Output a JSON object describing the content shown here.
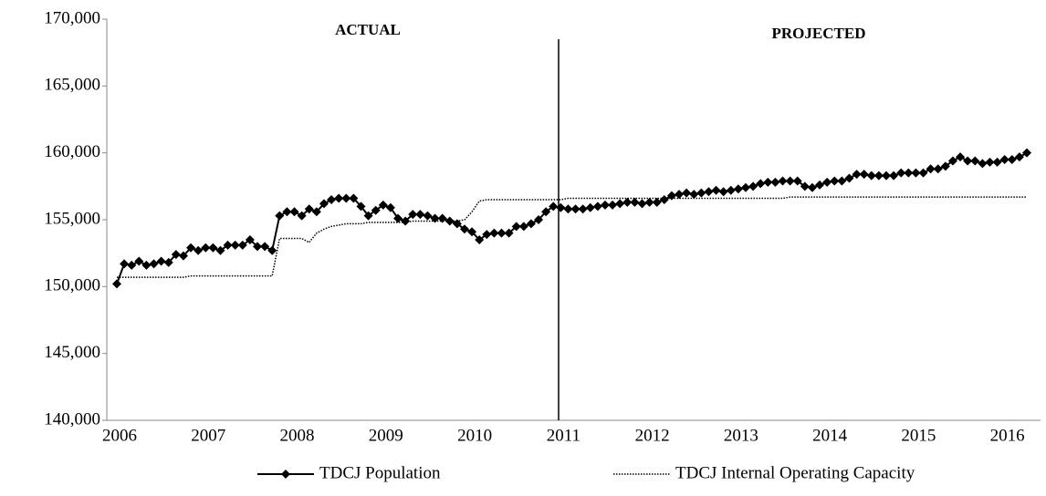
{
  "chart_data": {
    "type": "line",
    "annotations": [
      "ACTUAL",
      "PROJECTED"
    ],
    "categories": [
      "2006",
      null,
      null,
      null,
      null,
      null,
      null,
      null,
      null,
      null,
      null,
      null,
      "2007",
      null,
      null,
      null,
      null,
      null,
      null,
      null,
      null,
      null,
      null,
      null,
      "2008",
      null,
      null,
      null,
      null,
      null,
      null,
      null,
      null,
      null,
      null,
      null,
      "2009",
      null,
      null,
      null,
      null,
      null,
      null,
      null,
      null,
      null,
      null,
      null,
      "2010",
      null,
      null,
      null,
      null,
      null,
      null,
      null,
      null,
      null,
      null,
      null,
      "2011",
      null,
      null,
      null,
      null,
      null,
      null,
      null,
      null,
      null,
      null,
      null,
      "2012",
      null,
      null,
      null,
      null,
      null,
      null,
      null,
      null,
      null,
      null,
      null,
      "2013",
      null,
      null,
      null,
      null,
      null,
      null,
      null,
      null,
      null,
      null,
      null,
      "2014",
      null,
      null,
      null,
      null,
      null,
      null,
      null,
      null,
      null,
      null,
      null,
      "2015",
      null,
      null,
      null,
      null,
      null,
      null,
      null,
      null,
      null,
      null,
      null,
      "2016",
      null,
      null,
      null
    ],
    "series": [
      {
        "name": "TDCJ Population",
        "color": "#000000",
        "style": "solid",
        "marker": "diamond",
        "values": [
          150200,
          151700,
          151600,
          151900,
          151600,
          151700,
          151900,
          151800,
          152400,
          152300,
          152900,
          152700,
          152900,
          152900,
          152700,
          153100,
          153100,
          153100,
          153500,
          153000,
          153000,
          152700,
          155300,
          155600,
          155600,
          155300,
          155800,
          155600,
          156200,
          156500,
          156600,
          156600,
          156600,
          156000,
          155300,
          155700,
          156100,
          155900,
          155100,
          154900,
          155400,
          155400,
          155300,
          155100,
          155100,
          154900,
          154700,
          154300,
          154100,
          153500,
          153900,
          154000,
          154000,
          154000,
          154500,
          154500,
          154700,
          155000,
          155600,
          156000,
          155900,
          155800,
          155800,
          155800,
          155900,
          156000,
          156100,
          156100,
          156200,
          156300,
          156300,
          156200,
          156300,
          156300,
          156500,
          156800,
          156900,
          157000,
          156900,
          157000,
          157100,
          157200,
          157100,
          157200,
          157300,
          157400,
          157500,
          157700,
          157800,
          157800,
          157900,
          157900,
          157900,
          157500,
          157400,
          157600,
          157800,
          157900,
          157900,
          158100,
          158400,
          158400,
          158300,
          158300,
          158300,
          158300,
          158500,
          158500,
          158500,
          158500,
          158800,
          158800,
          159000,
          159400,
          159700,
          159400,
          159400,
          159200,
          159300,
          159300,
          159500,
          159500,
          159700,
          160000
        ]
      },
      {
        "name": "TDCJ Internal Operating Capacity",
        "color": "#000000",
        "style": "dotted",
        "marker": "none",
        "values": [
          150700,
          150700,
          150700,
          150700,
          150700,
          150700,
          150700,
          150700,
          150700,
          150700,
          150800,
          150800,
          150800,
          150800,
          150800,
          150800,
          150800,
          150800,
          150800,
          150800,
          150800,
          150800,
          153600,
          153600,
          153600,
          153600,
          153300,
          154000,
          154300,
          154500,
          154600,
          154700,
          154700,
          154700,
          154800,
          154800,
          154800,
          154800,
          154800,
          154800,
          154900,
          154900,
          154900,
          154900,
          154900,
          154900,
          154900,
          155000,
          155600,
          156400,
          156500,
          156500,
          156500,
          156500,
          156500,
          156500,
          156500,
          156500,
          156500,
          156500,
          156500,
          156600,
          156600,
          156600,
          156600,
          156600,
          156600,
          156600,
          156600,
          156600,
          156600,
          156600,
          156600,
          156600,
          156600,
          156600,
          156600,
          156600,
          156600,
          156600,
          156600,
          156600,
          156600,
          156600,
          156600,
          156600,
          156600,
          156600,
          156600,
          156600,
          156600,
          156700,
          156700,
          156700,
          156700,
          156700,
          156700,
          156700,
          156700,
          156700,
          156700,
          156700,
          156700,
          156700,
          156700,
          156700,
          156700,
          156700,
          156700,
          156700,
          156700,
          156700,
          156700,
          156700,
          156700,
          156700,
          156700,
          156700,
          156700,
          156700,
          156700,
          156700,
          156700,
          156700
        ]
      }
    ],
    "ylim": [
      140000,
      170000
    ],
    "yticks": [
      {
        "value": 140000,
        "label": "140,000"
      },
      {
        "value": 145000,
        "label": "145,000"
      },
      {
        "value": 150000,
        "label": "150,000"
      },
      {
        "value": 155000,
        "label": "155,000"
      },
      {
        "value": 160000,
        "label": "160,000"
      },
      {
        "value": 165000,
        "label": "165,000"
      },
      {
        "value": 170000,
        "label": "170,000"
      }
    ],
    "grid": false
  }
}
